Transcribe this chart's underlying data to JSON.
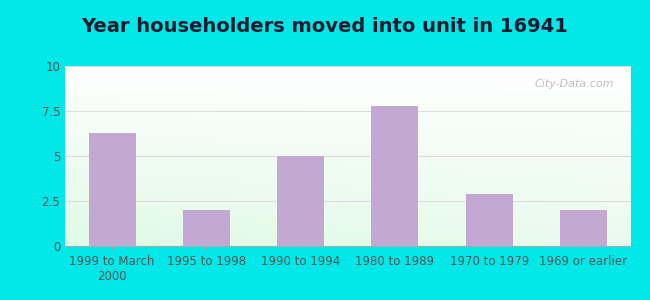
{
  "title": "Year householders moved into unit in 16941",
  "categories": [
    "1999 to March\n2000",
    "1995 to 1998",
    "1990 to 1994",
    "1980 to 1989",
    "1970 to 1979",
    "1969 or earlier"
  ],
  "values": [
    6.3,
    2.0,
    5.0,
    7.8,
    2.9,
    2.0
  ],
  "bar_color": "#c4a8d4",
  "ylim": [
    0,
    10
  ],
  "yticks": [
    0,
    2.5,
    5.0,
    7.5,
    10
  ],
  "ytick_labels": [
    "0",
    "2.5",
    "5",
    "7.5",
    "10"
  ],
  "background_outer": "#00e8e8",
  "title_fontsize": 14,
  "tick_fontsize": 8.5,
  "watermark": "City-Data.com",
  "grid_color": "#dddddd",
  "tick_color": "#555555"
}
